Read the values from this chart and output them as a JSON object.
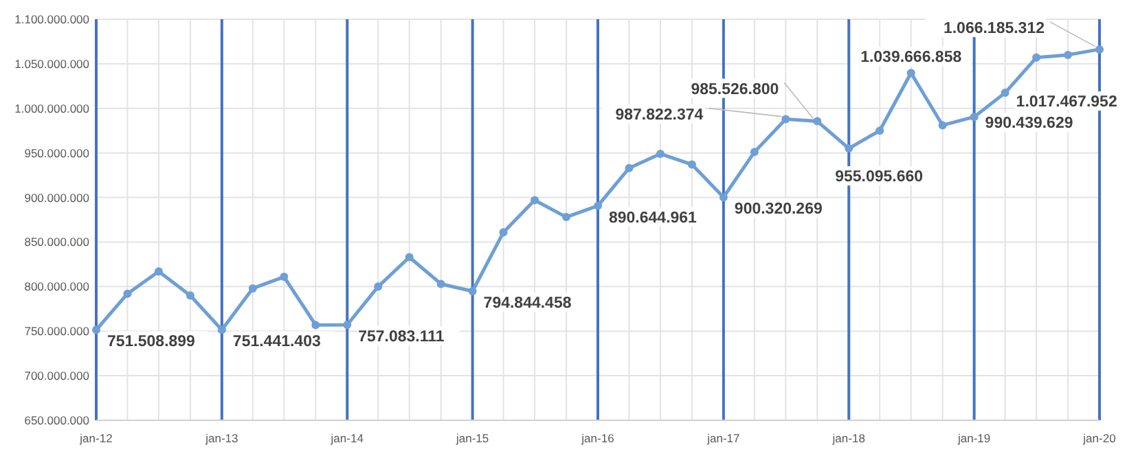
{
  "chart_data": {
    "type": "line",
    "x": [
      "2012-01",
      "2012-04",
      "2012-07",
      "2012-10",
      "2013-01",
      "2013-04",
      "2013-07",
      "2013-10",
      "2014-01",
      "2014-04",
      "2014-07",
      "2014-10",
      "2015-01",
      "2015-04",
      "2015-07",
      "2015-10",
      "2016-01",
      "2016-04",
      "2016-07",
      "2016-10",
      "2017-01",
      "2017-04",
      "2017-07",
      "2017-10",
      "2018-01",
      "2018-04",
      "2018-07",
      "2018-10",
      "2019-01",
      "2019-04",
      "2019-07",
      "2019-10",
      "2020-01"
    ],
    "series": [
      {
        "color": "#6e9fd5",
        "values": [
          751508899,
          792000000,
          817000000,
          790000000,
          751441403,
          798000000,
          811000000,
          757000000,
          757083111,
          800000000,
          833000000,
          803000000,
          794844458,
          861000000,
          897000000,
          878000000,
          890644961,
          933000000,
          949000000,
          937000000,
          900320269,
          951000000,
          987822374,
          985526800,
          955095660,
          975000000,
          1039666858,
          981000000,
          990439629,
          1017467952,
          1057000000,
          1060000000,
          1066185312
        ],
        "value_labels": [
          "751.508.899",
          null,
          null,
          null,
          "751.441.403",
          null,
          null,
          null,
          "757.083.111",
          null,
          null,
          null,
          "794.844.458",
          null,
          null,
          null,
          "890.644.961",
          null,
          null,
          null,
          "900.320.269",
          null,
          "987.822.374",
          "985.526.800",
          "955.095.660",
          null,
          "1.039.666.858",
          null,
          "990.439.629",
          "1.017.467.952",
          null,
          null,
          "1.066.185.312"
        ]
      }
    ],
    "marker": "circle",
    "line_style": "solid",
    "grid": true,
    "xlim": [
      "2012-01",
      "2020-01"
    ],
    "xticks": [
      {
        "value": "2012-01",
        "label": "jan-12"
      },
      {
        "value": "2012-04",
        "label": null
      },
      {
        "value": "2012-07",
        "label": null
      },
      {
        "value": "2012-10",
        "label": null
      },
      {
        "value": "2013-01",
        "label": "jan-13"
      },
      {
        "value": "2013-04",
        "label": null
      },
      {
        "value": "2013-07",
        "label": null
      },
      {
        "value": "2013-10",
        "label": null
      },
      {
        "value": "2014-01",
        "label": "jan-14"
      },
      {
        "value": "2014-04",
        "label": null
      },
      {
        "value": "2014-07",
        "label": null
      },
      {
        "value": "2014-10",
        "label": null
      },
      {
        "value": "2015-01",
        "label": "jan-15"
      },
      {
        "value": "2015-04",
        "label": null
      },
      {
        "value": "2015-07",
        "label": null
      },
      {
        "value": "2015-10",
        "label": null
      },
      {
        "value": "2016-01",
        "label": "jan-16"
      },
      {
        "value": "2016-04",
        "label": null
      },
      {
        "value": "2016-07",
        "label": null
      },
      {
        "value": "2016-10",
        "label": null
      },
      {
        "value": "2017-01",
        "label": "jan-17"
      },
      {
        "value": "2017-04",
        "label": null
      },
      {
        "value": "2017-07",
        "label": null
      },
      {
        "value": "2017-10",
        "label": null
      },
      {
        "value": "2018-01",
        "label": "jan-18"
      },
      {
        "value": "2018-04",
        "label": null
      },
      {
        "value": "2018-07",
        "label": null
      },
      {
        "value": "2018-10",
        "label": null
      },
      {
        "value": "2019-01",
        "label": "jan-19"
      },
      {
        "value": "2019-04",
        "label": null
      },
      {
        "value": "2019-07",
        "label": null
      },
      {
        "value": "2019-10",
        "label": null
      },
      {
        "value": "2020-01",
        "label": "jan-20"
      }
    ],
    "ylim": [
      650000000,
      1100000000
    ],
    "yticks": [
      {
        "value": 650000000,
        "label": "650.000.000"
      },
      {
        "value": 700000000,
        "label": "700.000.000"
      },
      {
        "value": 750000000,
        "label": "750.000.000"
      },
      {
        "value": 800000000,
        "label": "800.000.000"
      },
      {
        "value": 850000000,
        "label": "850.000.000"
      },
      {
        "value": 900000000,
        "label": "900.000.000"
      },
      {
        "value": 950000000,
        "label": "950.000.000"
      },
      {
        "value": 1000000000,
        "label": "1.000.000.000"
      },
      {
        "value": 1050000000,
        "label": "1.050.000.000"
      },
      {
        "value": 1100000000,
        "label": "1.100.000.000"
      }
    ]
  }
}
